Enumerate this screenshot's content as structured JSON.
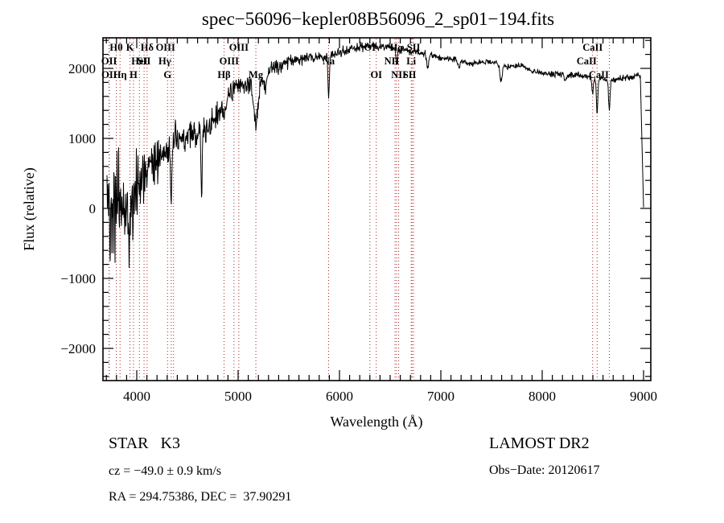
{
  "title": "spec−56096−kepler08B56096_2_sp01−194.fits",
  "footer": {
    "class_label": "STAR   K3",
    "survey": "LAMOST DR2",
    "cz": "cz = −49.0 ± 0.9 km/s",
    "obs_date": "Obs−Date: 20120617",
    "radec": "RA = 294.75386, DEC =  37.90291"
  },
  "chart_data": {
    "type": "line",
    "title": "spec−56096−kepler08B56096_2_sp01−194.fits",
    "xlabel": "Wavelength (Å)",
    "ylabel": "Flux (relative)",
    "xlim": [
      3667,
      9071
    ],
    "ylim": [
      -2460,
      2437
    ],
    "xticks": [
      4000,
      5000,
      6000,
      7000,
      8000,
      9000
    ],
    "yticks": [
      -2000,
      -1000,
      0,
      1000,
      2000
    ],
    "x_minor_step": 100,
    "y_minor_step": 200,
    "grid": false,
    "legend": "none",
    "line_color": "#000000",
    "marker_line_color": "#aa2222",
    "spectral_lines": [
      {
        "label": "Hθ",
        "wavelength": 3798,
        "row": 1
      },
      {
        "label": "K",
        "wavelength": 3933,
        "row": 1
      },
      {
        "label": "Hδ",
        "wavelength": 4102,
        "row": 1
      },
      {
        "label": "OIII",
        "wavelength": 4363,
        "row": 1,
        "dx": -10
      },
      {
        "label": "OIII",
        "wavelength": 5007,
        "row": 1
      },
      {
        "label": "OI",
        "wavelength": 6300,
        "row": 1
      },
      {
        "label": "Hα",
        "wavelength": 6563,
        "row": 1
      },
      {
        "label": "SII",
        "wavelength": 6731,
        "row": 1
      },
      {
        "label": "CaII",
        "wavelength": 8498,
        "row": 1
      },
      {
        "label": "OII",
        "wavelength": 3727,
        "row": 2
      },
      {
        "label": "HeI",
        "wavelength": 4026,
        "row": 2
      },
      {
        "label": "SII",
        "wavelength": 4072,
        "row": 2
      },
      {
        "label": "Hγ",
        "wavelength": 4340,
        "row": 2,
        "dx": -8
      },
      {
        "label": "OIII",
        "wavelength": 4959,
        "row": 2,
        "dx": -6
      },
      {
        "label": "Na",
        "wavelength": 5893,
        "row": 2
      },
      {
        "label": "NII",
        "wavelength": 6548,
        "row": 2,
        "dx": -4
      },
      {
        "label": "Li",
        "wavelength": 6708,
        "row": 2
      },
      {
        "label": "CaII",
        "wavelength": 8542,
        "row": 2,
        "dx": -13
      },
      {
        "label": "OII",
        "wavelength": 3729,
        "row": 3
      },
      {
        "label": "Hη",
        "wavelength": 3835,
        "row": 3
      },
      {
        "label": "H",
        "wavelength": 3968,
        "row": 3
      },
      {
        "label": "G",
        "wavelength": 4304,
        "row": 3
      },
      {
        "label": "Hβ",
        "wavelength": 4861,
        "row": 3
      },
      {
        "label": "Mg",
        "wavelength": 5175,
        "row": 3
      },
      {
        "label": "OI",
        "wavelength": 6363,
        "row": 3
      },
      {
        "label": "NII",
        "wavelength": 6584,
        "row": 3
      },
      {
        "label": "SII",
        "wavelength": 6716,
        "row": 3,
        "dx": -3
      },
      {
        "label": "CaII",
        "wavelength": 8662,
        "row": 3,
        "dx": -13
      }
    ],
    "continuum": [
      [
        3670,
        150
      ],
      [
        3760,
        80
      ],
      [
        3860,
        0
      ],
      [
        3940,
        150
      ],
      [
        4000,
        380
      ],
      [
        4080,
        520
      ],
      [
        4160,
        640
      ],
      [
        4240,
        760
      ],
      [
        4320,
        850
      ],
      [
        4400,
        950
      ],
      [
        4480,
        1010
      ],
      [
        4560,
        1050
      ],
      [
        4640,
        1090
      ],
      [
        4720,
        1180
      ],
      [
        4800,
        1330
      ],
      [
        4880,
        1560
      ],
      [
        4960,
        1700
      ],
      [
        5040,
        1780
      ],
      [
        5120,
        1720
      ],
      [
        5200,
        1750
      ],
      [
        5280,
        1950
      ],
      [
        5380,
        2030
      ],
      [
        5500,
        2100
      ],
      [
        5650,
        2150
      ],
      [
        5800,
        2160
      ],
      [
        5950,
        2200
      ],
      [
        6100,
        2280
      ],
      [
        6250,
        2320
      ],
      [
        6400,
        2320
      ],
      [
        6550,
        2280
      ],
      [
        6700,
        2250
      ],
      [
        6850,
        2210
      ],
      [
        7000,
        2150
      ],
      [
        7150,
        2130
      ],
      [
        7300,
        2060
      ],
      [
        7420,
        2090
      ],
      [
        7550,
        2080
      ],
      [
        7650,
        2030
      ],
      [
        7800,
        2040
      ],
      [
        7900,
        1960
      ],
      [
        8050,
        1920
      ],
      [
        8200,
        1920
      ],
      [
        8350,
        1900
      ],
      [
        8500,
        1860
      ],
      [
        8650,
        1840
      ],
      [
        8800,
        1860
      ],
      [
        8970,
        1900
      ]
    ],
    "noise_amplitude": [
      [
        3670,
        1350
      ],
      [
        3780,
        1250
      ],
      [
        3880,
        1050
      ],
      [
        3960,
        800
      ],
      [
        4040,
        600
      ],
      [
        4150,
        450
      ],
      [
        4300,
        380
      ],
      [
        4500,
        330
      ],
      [
        4700,
        300
      ],
      [
        4900,
        240
      ],
      [
        5100,
        200
      ],
      [
        5300,
        170
      ],
      [
        5500,
        140
      ],
      [
        5700,
        120
      ],
      [
        5900,
        110
      ],
      [
        6100,
        95
      ],
      [
        6400,
        85
      ],
      [
        6700,
        80
      ],
      [
        7000,
        65
      ],
      [
        7300,
        60
      ],
      [
        7600,
        60
      ],
      [
        7900,
        60
      ],
      [
        8200,
        65
      ],
      [
        8500,
        70
      ],
      [
        8800,
        70
      ],
      [
        9000,
        60
      ]
    ],
    "absorption_features": [
      [
        3933,
        500,
        10
      ],
      [
        3968,
        450,
        10
      ],
      [
        4101,
        300,
        8
      ],
      [
        4340,
        780,
        6
      ],
      [
        4640,
        1080,
        5
      ],
      [
        4861,
        260,
        10
      ],
      [
        5175,
        560,
        18
      ],
      [
        5270,
        280,
        8
      ],
      [
        5893,
        600,
        7
      ],
      [
        6563,
        230,
        7
      ],
      [
        6870,
        190,
        10
      ],
      [
        7180,
        120,
        10
      ],
      [
        7594,
        240,
        12
      ],
      [
        8230,
        100,
        10
      ],
      [
        8498,
        220,
        7
      ],
      [
        8542,
        500,
        7
      ],
      [
        8662,
        450,
        7
      ]
    ],
    "red_cutoff": {
      "start": 8968,
      "end": 9000,
      "floor": 20
    },
    "noise_seed": 42
  }
}
